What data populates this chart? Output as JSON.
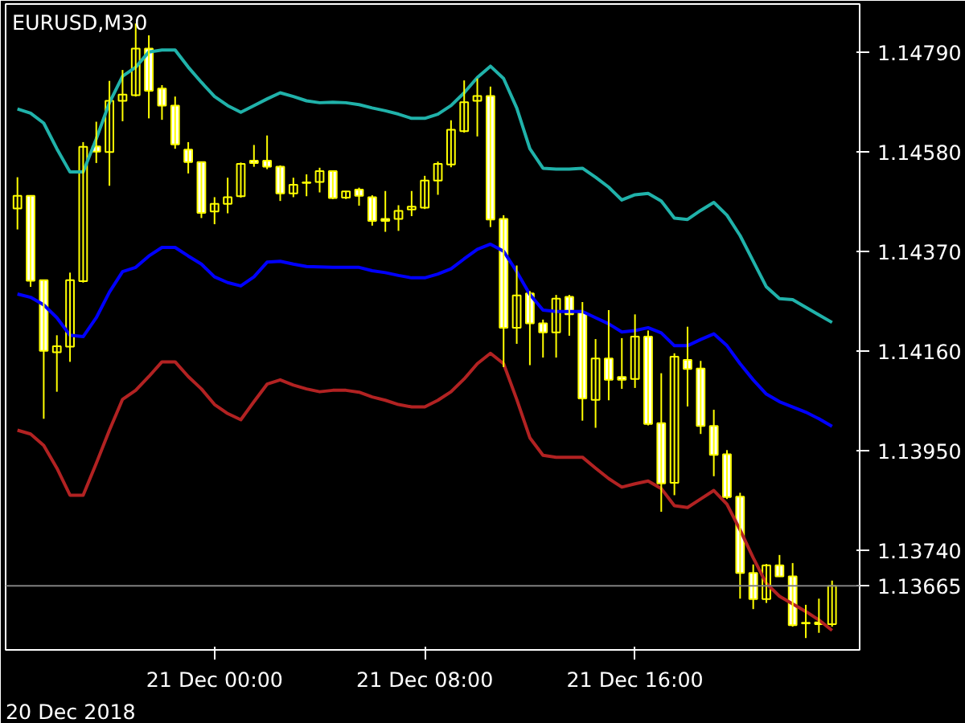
{
  "chart_data": {
    "type": "candlestick",
    "title": "EURUSD,M30",
    "color": "#ffff00",
    "grid": false,
    "x": [
      "2018-12-20T16:30",
      "2018-12-20T17:00",
      "2018-12-20T17:30",
      "2018-12-20T18:00",
      "2018-12-20T18:30",
      "2018-12-20T19:00",
      "2018-12-20T19:30",
      "2018-12-20T20:00",
      "2018-12-20T20:30",
      "2018-12-20T21:00",
      "2018-12-20T21:30",
      "2018-12-20T22:00",
      "2018-12-20T22:30",
      "2018-12-20T23:00",
      "2018-12-20T23:30",
      "2018-12-21T00:00",
      "2018-12-21T00:30",
      "2018-12-21T01:00",
      "2018-12-21T01:30",
      "2018-12-21T02:00",
      "2018-12-21T02:30",
      "2018-12-21T03:00",
      "2018-12-21T03:30",
      "2018-12-21T04:00",
      "2018-12-21T04:30",
      "2018-12-21T05:00",
      "2018-12-21T05:30",
      "2018-12-21T06:00",
      "2018-12-21T06:30",
      "2018-12-21T07:00",
      "2018-12-21T07:30",
      "2018-12-21T08:00",
      "2018-12-21T08:30",
      "2018-12-21T09:00",
      "2018-12-21T09:30",
      "2018-12-21T10:00",
      "2018-12-21T10:30",
      "2018-12-21T11:00",
      "2018-12-21T11:30",
      "2018-12-21T12:00",
      "2018-12-21T12:30",
      "2018-12-21T13:00",
      "2018-12-21T13:30",
      "2018-12-21T14:00",
      "2018-12-21T14:30",
      "2018-12-21T15:00",
      "2018-12-21T15:30",
      "2018-12-21T16:00",
      "2018-12-21T16:30",
      "2018-12-21T17:00",
      "2018-12-21T17:30",
      "2018-12-21T18:00",
      "2018-12-21T18:30",
      "2018-12-21T19:00",
      "2018-12-21T19:30",
      "2018-12-21T20:00",
      "2018-12-21T20:30",
      "2018-12-21T21:00",
      "2018-12-21T21:30",
      "2018-12-21T22:00",
      "2018-12-21T22:30",
      "2018-12-21T23:00",
      "2018-12-21T23:30"
    ],
    "ohlc": [
      [
        1.1446,
        1.14526,
        1.14416,
        1.14487
      ],
      [
        1.14487,
        1.14487,
        1.14295,
        1.14308
      ],
      [
        1.14309,
        1.14309,
        1.14017,
        1.1416
      ],
      [
        1.14157,
        1.14193,
        1.14074,
        1.1417
      ],
      [
        1.14169,
        1.14325,
        1.14137,
        1.14309
      ],
      [
        1.14307,
        1.146,
        1.14304,
        1.1459
      ],
      [
        1.14591,
        1.14643,
        1.14556,
        1.1458
      ],
      [
        1.14579,
        1.14729,
        1.14508,
        1.14687
      ],
      [
        1.14687,
        1.14752,
        1.14644,
        1.147
      ],
      [
        1.14699,
        1.1485,
        1.14696,
        1.14797
      ],
      [
        1.14797,
        1.14825,
        1.1465,
        1.14708
      ],
      [
        1.14713,
        1.1472,
        1.14647,
        1.14677
      ],
      [
        1.14677,
        1.14696,
        1.14586,
        1.14595
      ],
      [
        1.14584,
        1.146,
        1.14534,
        1.14558
      ],
      [
        1.14558,
        1.14558,
        1.1444,
        1.14451
      ],
      [
        1.14454,
        1.14484,
        1.14427,
        1.1447
      ],
      [
        1.1447,
        1.14525,
        1.1445,
        1.14484
      ],
      [
        1.14486,
        1.14557,
        1.14483,
        1.14554
      ],
      [
        1.14561,
        1.14594,
        1.14548,
        1.14556
      ],
      [
        1.14561,
        1.14614,
        1.14543,
        1.14548
      ],
      [
        1.14548,
        1.14551,
        1.14476,
        1.14492
      ],
      [
        1.14492,
        1.14525,
        1.14484,
        1.1451
      ],
      [
        1.14515,
        1.14532,
        1.14486,
        1.14514
      ],
      [
        1.14516,
        1.14546,
        1.14494,
        1.14539
      ],
      [
        1.14539,
        1.14539,
        1.1448,
        1.14482
      ],
      [
        1.14483,
        1.14497,
        1.1448,
        1.14496
      ],
      [
        1.145,
        1.14504,
        1.14466,
        1.14487
      ],
      [
        1.14484,
        1.14488,
        1.14424,
        1.14434
      ],
      [
        1.14438,
        1.14497,
        1.14411,
        1.14434
      ],
      [
        1.14438,
        1.14467,
        1.14413,
        1.14455
      ],
      [
        1.14458,
        1.14497,
        1.14444,
        1.14464
      ],
      [
        1.14462,
        1.14529,
        1.14459,
        1.14519
      ],
      [
        1.14519,
        1.14559,
        1.14489,
        1.14554
      ],
      [
        1.14553,
        1.14646,
        1.14547,
        1.14626
      ],
      [
        1.14623,
        1.1473,
        1.1462,
        1.14684
      ],
      [
        1.14687,
        1.14734,
        1.14612,
        1.14697
      ],
      [
        1.14697,
        1.14717,
        1.14421,
        1.14437
      ],
      [
        1.14438,
        1.14446,
        1.14126,
        1.14209
      ],
      [
        1.14209,
        1.1434,
        1.14175,
        1.14277
      ],
      [
        1.14281,
        1.14286,
        1.1413,
        1.14218
      ],
      [
        1.14218,
        1.14226,
        1.14146,
        1.14199
      ],
      [
        1.14199,
        1.14278,
        1.14146,
        1.1427
      ],
      [
        1.14274,
        1.14278,
        1.14192,
        1.14237
      ],
      [
        1.14241,
        1.14263,
        1.14013,
        1.1406
      ],
      [
        1.14057,
        1.14185,
        1.13998,
        1.14144
      ],
      [
        1.14144,
        1.14246,
        1.14056,
        1.14099
      ],
      [
        1.14105,
        1.14187,
        1.1408,
        1.14099
      ],
      [
        1.14101,
        1.14237,
        1.14082,
        1.1419
      ],
      [
        1.1419,
        1.14203,
        1.14003,
        1.14006
      ],
      [
        1.14008,
        1.14113,
        1.13821,
        1.13881
      ],
      [
        1.13882,
        1.14155,
        1.13856,
        1.14148
      ],
      [
        1.14141,
        1.14211,
        1.14043,
        1.14122
      ],
      [
        1.14123,
        1.14139,
        1.13985,
        1.14002
      ],
      [
        1.14002,
        1.14036,
        1.13896,
        1.13941
      ],
      [
        1.13942,
        1.13951,
        1.13848,
        1.13852
      ],
      [
        1.13853,
        1.13861,
        1.13638,
        1.13692
      ],
      [
        1.13692,
        1.1371,
        1.13616,
        1.13637
      ],
      [
        1.13637,
        1.13711,
        1.13629,
        1.13708
      ],
      [
        1.13708,
        1.1373,
        1.13685,
        1.13685
      ],
      [
        1.13685,
        1.13713,
        1.13579,
        1.13582
      ],
      [
        1.13587,
        1.13625,
        1.13555,
        1.13586
      ],
      [
        1.13588,
        1.13638,
        1.13566,
        1.13584
      ],
      [
        1.13584,
        1.13676,
        1.13579,
        1.13665
      ]
    ],
    "series": [
      {
        "type": "line",
        "color": "#20b2aa",
        "values": [
          1.1467,
          1.14661,
          1.1464,
          1.14586,
          1.14537,
          1.14537,
          1.14607,
          1.14683,
          1.14739,
          1.14758,
          1.1479,
          1.14794,
          1.14794,
          1.14758,
          1.14726,
          1.14696,
          1.14677,
          1.14663,
          1.14677,
          1.14691,
          1.14704,
          1.14696,
          1.14687,
          1.14683,
          1.14684,
          1.14683,
          1.14679,
          1.14672,
          1.14666,
          1.14659,
          1.1465,
          1.1465,
          1.14659,
          1.14677,
          1.14704,
          1.14736,
          1.1476,
          1.14734,
          1.14672,
          1.14586,
          1.14545,
          1.14543,
          1.14543,
          1.14545,
          1.14526,
          1.14505,
          1.14478,
          1.14489,
          1.14492,
          1.14476,
          1.1444,
          1.14437,
          1.14456,
          1.14473,
          1.14446,
          1.14403,
          1.14349,
          1.14295,
          1.1427,
          1.14268,
          1.14252,
          1.14236,
          1.1422
        ]
      },
      {
        "type": "line",
        "color": "#0000ff",
        "values": [
          1.1428,
          1.14273,
          1.14257,
          1.1423,
          1.14193,
          1.1419,
          1.1423,
          1.14284,
          1.14327,
          1.14336,
          1.1436,
          1.14378,
          1.14378,
          1.1436,
          1.14343,
          1.14316,
          1.14304,
          1.14297,
          1.14316,
          1.14347,
          1.14349,
          1.14343,
          1.14338,
          1.14337,
          1.14336,
          1.14336,
          1.14336,
          1.14329,
          1.14325,
          1.14319,
          1.14314,
          1.14314,
          1.14322,
          1.14333,
          1.14354,
          1.14374,
          1.14385,
          1.1437,
          1.14327,
          1.14279,
          1.14246,
          1.14243,
          1.14243,
          1.14243,
          1.1423,
          1.14217,
          1.142,
          1.14203,
          1.14209,
          1.14198,
          1.14171,
          1.14171,
          1.14184,
          1.14196,
          1.14171,
          1.14133,
          1.14099,
          1.14069,
          1.14053,
          1.14042,
          1.14031,
          1.14017,
          1.14001
        ]
      },
      {
        "type": "line",
        "color": "#b22222",
        "values": [
          1.13993,
          1.13985,
          1.13961,
          1.13913,
          1.13856,
          1.13856,
          1.13923,
          1.13993,
          1.14058,
          1.14077,
          1.14106,
          1.14137,
          1.14137,
          1.14106,
          1.1408,
          1.14047,
          1.14028,
          1.14015,
          1.14053,
          1.1409,
          1.14099,
          1.14088,
          1.1408,
          1.14074,
          1.14077,
          1.14077,
          1.14073,
          1.14063,
          1.14056,
          1.14047,
          1.14042,
          1.14042,
          1.14056,
          1.14074,
          1.14101,
          1.14133,
          1.14155,
          1.14133,
          1.14058,
          1.13977,
          1.1394,
          1.13936,
          1.13936,
          1.13936,
          1.13913,
          1.13891,
          1.13873,
          1.1388,
          1.13886,
          1.1387,
          1.13834,
          1.1383,
          1.13848,
          1.13866,
          1.13837,
          1.13783,
          1.13724,
          1.1367,
          1.13643,
          1.13627,
          1.13611,
          1.13593,
          1.13571
        ]
      }
    ],
    "xlim": [
      "2018-12-20T16:03",
      "2018-12-22T00:33"
    ],
    "ylim": [
      1.1353,
      1.14891
    ],
    "xticks": [
      {
        "value": "2018-12-21T00:00",
        "label": "21 Dec 00:00"
      },
      {
        "value": "2018-12-21T08:00",
        "label": "21 Dec 08:00"
      },
      {
        "value": "2018-12-21T16:00",
        "label": "21 Dec 16:00"
      }
    ],
    "yticks": [
      {
        "value": 1.1479,
        "label": "1.14790"
      },
      {
        "value": 1.1458,
        "label": "1.14580"
      },
      {
        "value": 1.1437,
        "label": "1.14370"
      },
      {
        "value": 1.1416,
        "label": "1.14160"
      },
      {
        "value": 1.1395,
        "label": "1.13950"
      },
      {
        "value": 1.1374,
        "label": "1.13740"
      }
    ],
    "ref_lines": [
      {
        "axis": "y",
        "value": 1.13665,
        "label": "1.13665",
        "color": "#808080"
      }
    ],
    "annotations": [
      "20 Dec 2018"
    ]
  }
}
